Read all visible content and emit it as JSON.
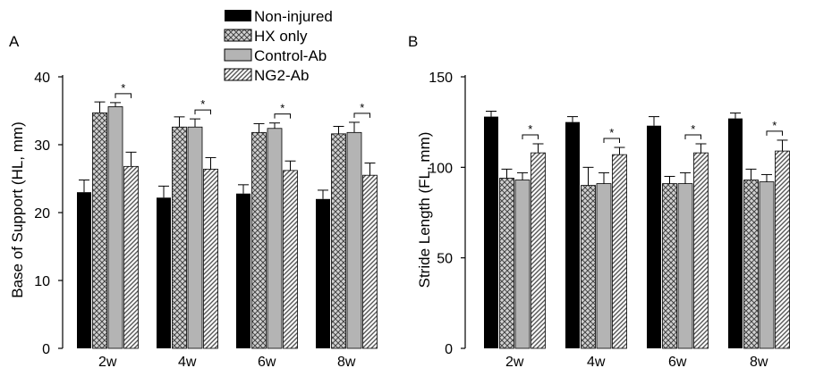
{
  "legend": {
    "items": [
      {
        "label": "Non-injured",
        "pattern": "solid-black"
      },
      {
        "label": "HX only",
        "pattern": "crosshatch"
      },
      {
        "label": "Control-Ab",
        "pattern": "solid-gray"
      },
      {
        "label": "NG2-Ab",
        "pattern": "diagonal-hatch"
      }
    ]
  },
  "colors": {
    "non_injured": "#000000",
    "control_ab": "#b4b4b4",
    "hatch_line": "#555555",
    "cross_bg": "#d2d2d2"
  },
  "chart_data": [
    {
      "type": "bar",
      "panel_label": "A",
      "title": "",
      "xlabel": "",
      "ylabel": "Base of Support (HL, mm)",
      "ylim": [
        0,
        40
      ],
      "yticks": [
        0,
        10,
        20,
        30,
        40
      ],
      "categories": [
        "2w",
        "4w",
        "6w",
        "8w"
      ],
      "series": [
        {
          "name": "Non-injured",
          "values": [
            23.0,
            22.2,
            22.8,
            22.0
          ],
          "errors": [
            1.8,
            1.7,
            1.3,
            1.3
          ]
        },
        {
          "name": "HX only",
          "values": [
            34.7,
            32.6,
            31.8,
            31.6
          ],
          "errors": [
            1.6,
            1.5,
            1.3,
            1.1
          ]
        },
        {
          "name": "Control-Ab",
          "values": [
            35.6,
            32.6,
            32.4,
            31.8
          ],
          "errors": [
            0.6,
            1.2,
            0.8,
            1.5
          ]
        },
        {
          "name": "NG2-Ab",
          "values": [
            26.8,
            26.4,
            26.2,
            25.5
          ],
          "errors": [
            2.1,
            1.7,
            1.4,
            1.8
          ]
        }
      ],
      "significance": [
        {
          "category": "2w",
          "between": [
            "Control-Ab",
            "NG2-Ab"
          ],
          "label": "*"
        },
        {
          "category": "4w",
          "between": [
            "Control-Ab",
            "NG2-Ab"
          ],
          "label": "*"
        },
        {
          "category": "6w",
          "between": [
            "Control-Ab",
            "NG2-Ab"
          ],
          "label": "*"
        },
        {
          "category": "8w",
          "between": [
            "Control-Ab",
            "NG2-Ab"
          ],
          "label": "*"
        }
      ],
      "grid": false
    },
    {
      "type": "bar",
      "panel_label": "B",
      "title": "",
      "xlabel": "",
      "ylabel": "Stride Length (FL, mm)",
      "ylim": [
        0,
        150
      ],
      "yticks": [
        0,
        50,
        100,
        150
      ],
      "categories": [
        "2w",
        "4w",
        "6w",
        "8w"
      ],
      "series": [
        {
          "name": "Non-injured",
          "values": [
            128,
            125,
            123,
            127
          ],
          "errors": [
            3,
            3,
            5,
            3
          ]
        },
        {
          "name": "HX only",
          "values": [
            94,
            90,
            91,
            93
          ],
          "errors": [
            5,
            10,
            4,
            6
          ]
        },
        {
          "name": "Control-Ab",
          "values": [
            93,
            91,
            91,
            92
          ],
          "errors": [
            4,
            6,
            6,
            4
          ]
        },
        {
          "name": "NG2-Ab",
          "values": [
            108,
            107,
            108,
            109
          ],
          "errors": [
            5,
            4,
            5,
            6
          ]
        }
      ],
      "significance": [
        {
          "category": "2w",
          "between": [
            "Control-Ab",
            "NG2-Ab"
          ],
          "label": "*"
        },
        {
          "category": "4w",
          "between": [
            "Control-Ab",
            "NG2-Ab"
          ],
          "label": "*"
        },
        {
          "category": "6w",
          "between": [
            "Control-Ab",
            "NG2-Ab"
          ],
          "label": "*"
        },
        {
          "category": "8w",
          "between": [
            "Control-Ab",
            "NG2-Ab"
          ],
          "label": "*"
        }
      ],
      "grid": false
    }
  ]
}
